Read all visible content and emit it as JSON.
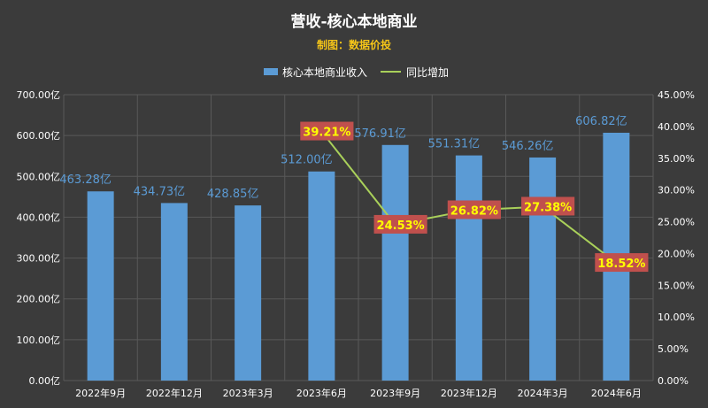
{
  "title": "营收-核心本地商业",
  "subtitle": "制图：数据价投",
  "colors": {
    "background": "#3b3b3b",
    "bar": "#5b9bd5",
    "line": "#a9d05a",
    "grid": "#595959",
    "label_box": "#c0504d",
    "label_text": "#ffff00"
  },
  "chart_data": {
    "type": "bar",
    "categories": [
      "2022年9月",
      "2022年12月",
      "2023年3月",
      "2023年6月",
      "2023年9月",
      "2023年12月",
      "2024年3月",
      "2024年6月"
    ],
    "series": [
      {
        "name": "核心本地商业收入",
        "type": "bar",
        "axis": "left",
        "values": [
          463.28,
          434.73,
          428.85,
          512.0,
          576.91,
          551.31,
          546.26,
          606.82
        ],
        "labels": [
          "463.28亿",
          "434.73亿",
          "428.85亿",
          "512.00亿",
          "576.91亿",
          "551.31亿",
          "546.26亿",
          "606.82亿"
        ]
      },
      {
        "name": "同比增加",
        "type": "line",
        "axis": "right",
        "values": [
          null,
          null,
          null,
          39.21,
          24.53,
          26.82,
          27.38,
          18.52
        ],
        "labels": [
          null,
          null,
          null,
          "39.21%",
          "24.53%",
          "26.82%",
          "27.38%",
          "18.52%"
        ]
      }
    ],
    "y_left": {
      "min": 0,
      "max": 700,
      "ticks": [
        0,
        100,
        200,
        300,
        400,
        500,
        600,
        700
      ],
      "tick_labels": [
        "0.00亿",
        "100.00亿",
        "200.00亿",
        "300.00亿",
        "400.00亿",
        "500.00亿",
        "600.00亿",
        "700.00亿"
      ]
    },
    "y_right": {
      "min": 0,
      "max": 45,
      "ticks": [
        0,
        5,
        10,
        15,
        20,
        25,
        30,
        35,
        40,
        45
      ],
      "tick_labels": [
        "0.00%",
        "5.00%",
        "10.00%",
        "15.00%",
        "20.00%",
        "25.00%",
        "30.00%",
        "35.00%",
        "40.00%",
        "45.00%"
      ]
    },
    "grid": true,
    "legend": "top-center"
  }
}
